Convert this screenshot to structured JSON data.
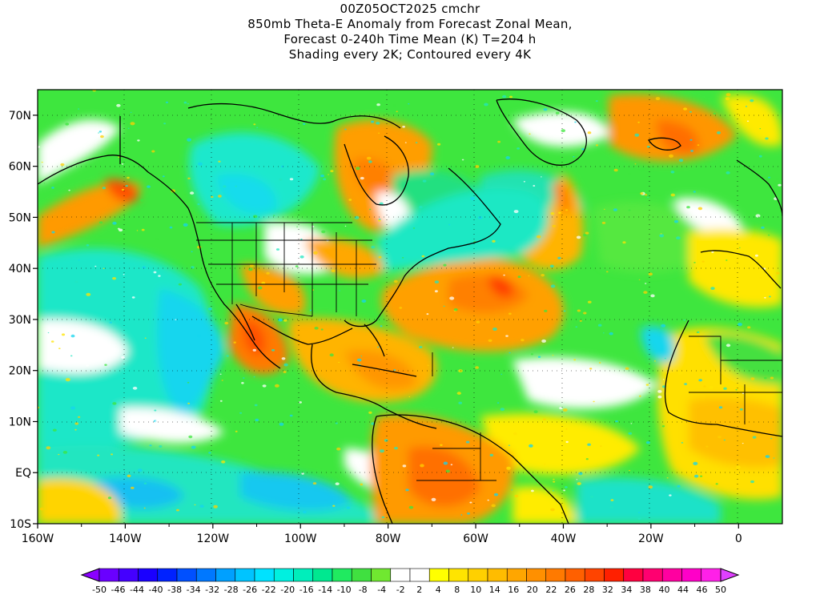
{
  "title": {
    "line1": "00Z05OCT2025 cmchr",
    "line2": "850mb Theta-E Anomaly from Forecast Zonal Mean,",
    "line3": "Forecast 0-240h Time Mean (K) T=204 h",
    "line4": "Shading every 2K; Contoured every 4K"
  },
  "map": {
    "lon_range": [
      -160,
      10
    ],
    "lat_range": [
      -10,
      75
    ],
    "x_ticks": [
      "160W",
      "140W",
      "120W",
      "100W",
      "80W",
      "60W",
      "40W",
      "20W",
      "0"
    ],
    "y_ticks": [
      "70N",
      "60N",
      "50N",
      "40N",
      "30N",
      "20N",
      "10N",
      "EQ",
      "10S"
    ],
    "grid": "dotted"
  },
  "colorbar": {
    "labels": [
      "-50",
      "-46",
      "-44",
      "-40",
      "-38",
      "-34",
      "-32",
      "-28",
      "-26",
      "-22",
      "-20",
      "-16",
      "-14",
      "-10",
      "-8",
      "-4",
      "-2",
      "2",
      "4",
      "8",
      "10",
      "14",
      "16",
      "20",
      "22",
      "26",
      "28",
      "32",
      "34",
      "38",
      "40",
      "44",
      "46",
      "50"
    ],
    "colors": [
      "#8a00ff",
      "#6a00ff",
      "#4400ff",
      "#1a00ff",
      "#0022ff",
      "#0050ff",
      "#0078ff",
      "#00a0ff",
      "#00c4ff",
      "#00e2ff",
      "#00f0e0",
      "#00eebb",
      "#00e890",
      "#20ea60",
      "#40e040",
      "#70e830",
      "#ffffff",
      "#ffffff",
      "#ffff00",
      "#ffe400",
      "#ffd000",
      "#ffbc00",
      "#ffa600",
      "#ff9000",
      "#ff7a00",
      "#ff6000",
      "#ff4400",
      "#ff2000",
      "#ff0040",
      "#ff0070",
      "#ff00a0",
      "#ff00c8",
      "#ff20e8",
      "#e040ff"
    ]
  }
}
